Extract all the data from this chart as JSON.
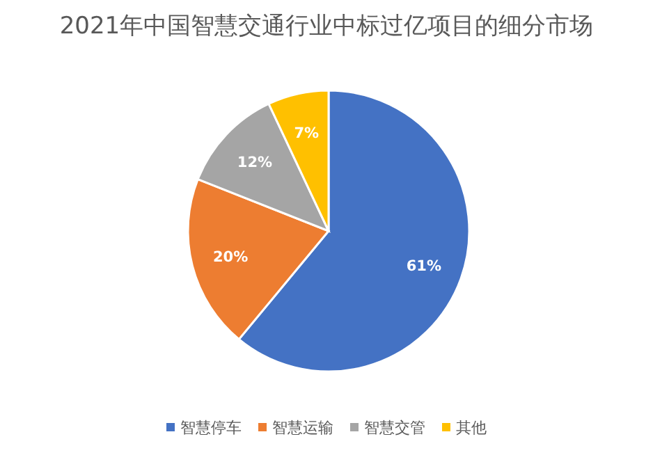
{
  "chart_data": {
    "type": "pie",
    "title": "2021年中国智慧交通行业中标过亿项目的细分市场",
    "categories": [
      "智慧停车",
      "智慧运输",
      "智慧交管",
      "其他"
    ],
    "values": [
      61,
      20,
      12,
      7
    ],
    "colors": [
      "#4472c4",
      "#ed7d31",
      "#a5a5a5",
      "#ffc000"
    ],
    "value_labels": [
      "61%",
      "20%",
      "12%",
      "7%"
    ],
    "legend": "bottom"
  }
}
